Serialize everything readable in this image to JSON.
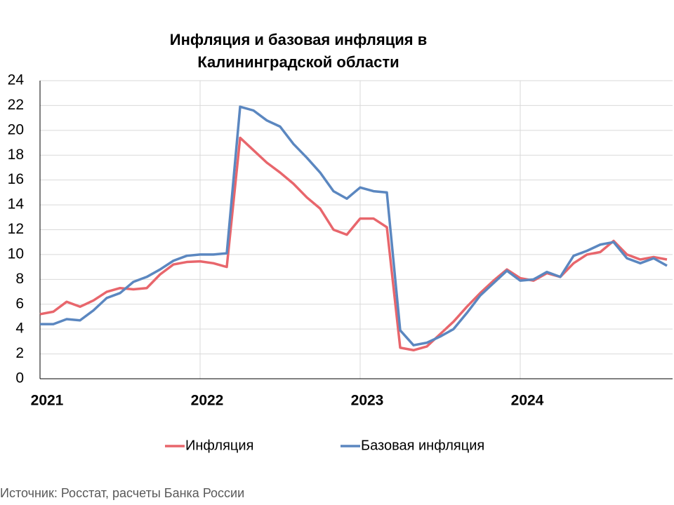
{
  "chart_data": {
    "type": "line",
    "title": "Инфляция и базовая инфляция в",
    "title_line2": "Калининградской области",
    "source": "Источник: Росстат, расчеты Банка России",
    "categories": [
      "2021",
      null,
      null,
      null,
      null,
      null,
      null,
      null,
      null,
      null,
      null,
      null,
      "2022",
      null,
      null,
      null,
      null,
      null,
      null,
      null,
      null,
      null,
      null,
      null,
      "2023",
      null,
      null,
      null,
      null,
      null,
      null,
      null,
      null,
      null,
      null,
      null,
      "2024",
      null,
      null,
      null,
      null,
      null,
      null,
      null,
      null,
      null,
      null,
      null
    ],
    "series": [
      {
        "name": "Инфляция",
        "color": "#e8666c",
        "values": [
          5.2,
          5.4,
          6.2,
          5.8,
          6.3,
          7.0,
          7.3,
          7.2,
          7.3,
          8.4,
          9.2,
          9.4,
          9.45,
          9.3,
          9.0,
          19.4,
          18.4,
          17.4,
          16.6,
          15.7,
          14.6,
          13.7,
          12.0,
          11.6,
          12.9,
          12.9,
          12.2,
          2.5,
          2.3,
          2.6,
          3.6,
          4.6,
          5.8,
          6.9,
          7.9,
          8.8,
          8.1,
          7.9,
          8.5,
          8.2,
          9.3,
          10.0,
          10.2,
          11.1,
          10.0,
          9.6,
          9.8,
          9.6
        ]
      },
      {
        "name": "Базовая инфляция",
        "color": "#5b87c0",
        "values": [
          4.4,
          4.4,
          4.8,
          4.7,
          5.5,
          6.5,
          6.9,
          7.8,
          8.2,
          8.8,
          9.5,
          9.9,
          10.0,
          10.0,
          10.1,
          21.9,
          21.6,
          20.8,
          20.3,
          18.9,
          17.8,
          16.6,
          15.1,
          14.5,
          15.4,
          15.1,
          15.0,
          3.9,
          2.7,
          2.9,
          3.4,
          4.0,
          5.3,
          6.7,
          7.7,
          8.7,
          7.9,
          8.0,
          8.6,
          8.2,
          9.9,
          10.3,
          10.8,
          11.0,
          9.7,
          9.3,
          9.7,
          9.1
        ]
      }
    ],
    "ylim": [
      0,
      24
    ],
    "yticks": [
      0,
      2,
      4,
      6,
      8,
      10,
      12,
      14,
      16,
      18,
      20,
      22,
      24
    ],
    "grid": true
  }
}
